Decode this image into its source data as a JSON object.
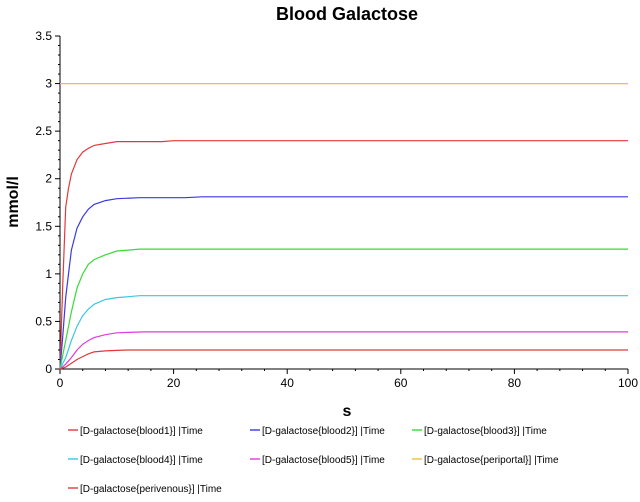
{
  "chart_data": {
    "type": "line",
    "title": "Blood Galactose",
    "xlabel": "s",
    "ylabel": "mmol/l",
    "xlim": [
      0,
      100
    ],
    "ylim": [
      0,
      3.5
    ],
    "xticks": [
      "0",
      "20",
      "40",
      "60",
      "80",
      "100"
    ],
    "yticks": [
      "0",
      "0.5",
      "1",
      "1.5",
      "2",
      "2.5",
      "3",
      "3.5"
    ],
    "grid": false,
    "legend": "bottom",
    "series": [
      {
        "name": "[D-galactose{blood1}] |Time",
        "color": "#e03a3a",
        "x": [
          0,
          0.5,
          1,
          1.5,
          2,
          3,
          4,
          5,
          6,
          8,
          10,
          14,
          18,
          20,
          25,
          40,
          60,
          80,
          100
        ],
        "y": [
          0,
          0.9,
          1.7,
          1.9,
          2.05,
          2.2,
          2.28,
          2.32,
          2.35,
          2.37,
          2.39,
          2.39,
          2.39,
          2.4,
          2.4,
          2.4,
          2.4,
          2.4,
          2.4
        ]
      },
      {
        "name": "[D-galactose{blood2}] |Time",
        "color": "#3a3ae0",
        "x": [
          0,
          0.5,
          1,
          1.5,
          2,
          3,
          4,
          5,
          6,
          8,
          10,
          14,
          18,
          22,
          25,
          40,
          60,
          80,
          100
        ],
        "y": [
          0,
          0.35,
          0.75,
          1.0,
          1.25,
          1.48,
          1.6,
          1.68,
          1.73,
          1.77,
          1.79,
          1.8,
          1.8,
          1.8,
          1.81,
          1.81,
          1.81,
          1.81,
          1.81
        ]
      },
      {
        "name": "[D-galactose{blood3}] |Time",
        "color": "#3ad93a",
        "x": [
          0,
          1,
          2,
          3,
          4,
          5,
          6,
          8,
          10,
          12,
          14,
          16,
          20,
          40,
          60,
          80,
          100
        ],
        "y": [
          0,
          0.3,
          0.6,
          0.85,
          1.0,
          1.1,
          1.15,
          1.2,
          1.24,
          1.25,
          1.26,
          1.26,
          1.26,
          1.26,
          1.26,
          1.26,
          1.26
        ]
      },
      {
        "name": "[D-galactose{blood4}] |Time",
        "color": "#3ac8e0",
        "x": [
          0,
          1,
          2,
          3,
          4,
          5,
          6,
          8,
          10,
          12,
          14,
          20,
          40,
          60,
          80,
          100
        ],
        "y": [
          0,
          0.12,
          0.3,
          0.45,
          0.56,
          0.63,
          0.68,
          0.73,
          0.75,
          0.76,
          0.77,
          0.77,
          0.77,
          0.77,
          0.77,
          0.77
        ]
      },
      {
        "name": "[D-galactose{blood5}] |Time",
        "color": "#e03ae0",
        "x": [
          0,
          1,
          2,
          3,
          4,
          5,
          6,
          8,
          10,
          12,
          15,
          20,
          40,
          60,
          80,
          100
        ],
        "y": [
          0,
          0.05,
          0.12,
          0.2,
          0.26,
          0.3,
          0.33,
          0.36,
          0.38,
          0.385,
          0.39,
          0.39,
          0.39,
          0.39,
          0.39,
          0.39
        ]
      },
      {
        "name": "[D-galactose{periportal}] |Time",
        "color": "#f0c040",
        "x": [
          0,
          100
        ],
        "y": [
          3.0,
          3.0
        ]
      },
      {
        "name": "[D-galactose{perivenous}] |Time",
        "color": "#e03a3a",
        "x": [
          0,
          1,
          2,
          3,
          4,
          5,
          6,
          8,
          10,
          12,
          14,
          20,
          40,
          60,
          80,
          100
        ],
        "y": [
          0,
          0.02,
          0.06,
          0.1,
          0.13,
          0.16,
          0.18,
          0.19,
          0.195,
          0.2,
          0.2,
          0.2,
          0.2,
          0.2,
          0.2,
          0.2
        ]
      }
    ]
  }
}
